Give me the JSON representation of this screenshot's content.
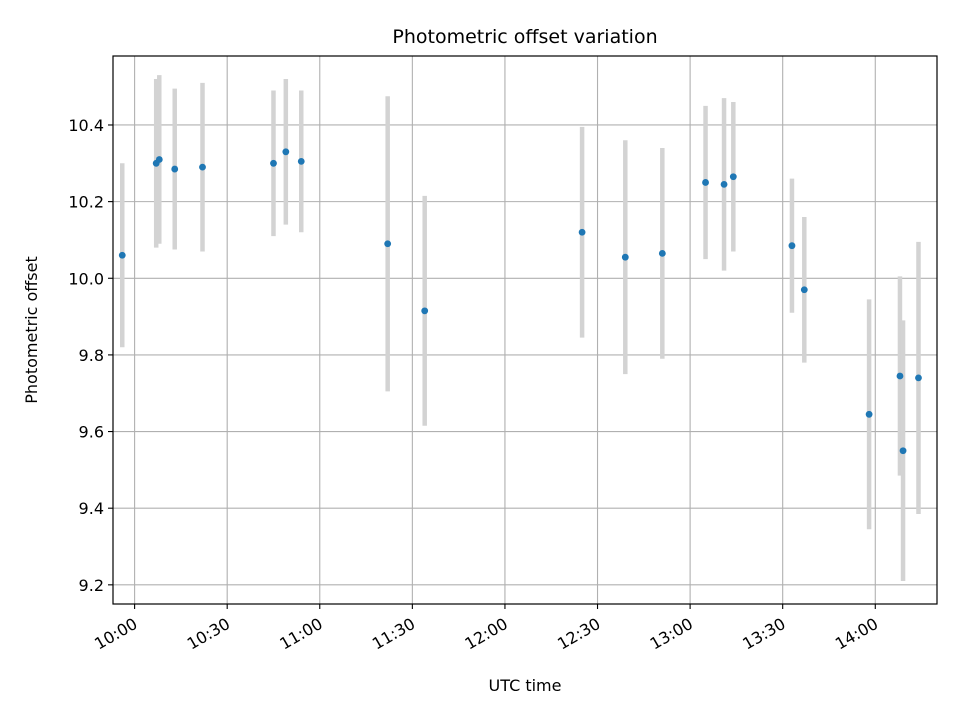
{
  "chart_data": {
    "type": "scatter",
    "title": "Photometric offset variation",
    "xlabel": "UTC time",
    "ylabel": "Photometric offset",
    "x_ticks": [
      "10:00",
      "10:30",
      "11:00",
      "11:30",
      "12:00",
      "12:30",
      "13:00",
      "13:30",
      "14:00"
    ],
    "y_ticks": [
      9.2,
      9.4,
      9.6,
      9.8,
      10.0,
      10.2,
      10.4
    ],
    "xlim": [
      "09:53",
      "14:20"
    ],
    "ylim": [
      9.15,
      10.58
    ],
    "grid": true,
    "point_color": "#1f77b4",
    "errorbar_color": "#d3d3d3",
    "series": [
      {
        "points": [
          {
            "x": "09:56",
            "y": 10.06,
            "yerr": 0.24
          },
          {
            "x": "10:07",
            "y": 10.3,
            "yerr": 0.22
          },
          {
            "x": "10:08",
            "y": 10.31,
            "yerr": 0.22
          },
          {
            "x": "10:13",
            "y": 10.285,
            "yerr": 0.21
          },
          {
            "x": "10:22",
            "y": 10.29,
            "yerr": 0.22
          },
          {
            "x": "10:45",
            "y": 10.3,
            "yerr": 0.19
          },
          {
            "x": "10:49",
            "y": 10.33,
            "yerr": 0.19
          },
          {
            "x": "10:54",
            "y": 10.305,
            "yerr": 0.185
          },
          {
            "x": "11:22",
            "y": 10.09,
            "yerr": 0.385
          },
          {
            "x": "11:34",
            "y": 9.915,
            "yerr": 0.3
          },
          {
            "x": "12:25",
            "y": 10.12,
            "yerr": 0.275
          },
          {
            "x": "12:39",
            "y": 10.055,
            "yerr": 0.305
          },
          {
            "x": "12:51",
            "y": 10.065,
            "yerr": 0.275
          },
          {
            "x": "13:05",
            "y": 10.25,
            "yerr": 0.2
          },
          {
            "x": "13:11",
            "y": 10.245,
            "yerr": 0.225
          },
          {
            "x": "13:14",
            "y": 10.265,
            "yerr": 0.195
          },
          {
            "x": "13:33",
            "y": 10.085,
            "yerr": 0.175
          },
          {
            "x": "13:37",
            "y": 9.97,
            "yerr": 0.19
          },
          {
            "x": "13:58",
            "y": 9.645,
            "yerr": 0.3
          },
          {
            "x": "14:08",
            "y": 9.745,
            "yerr": 0.26
          },
          {
            "x": "14:09",
            "y": 9.55,
            "yerr": 0.34
          },
          {
            "x": "14:14",
            "y": 9.74,
            "yerr": 0.355
          }
        ]
      }
    ]
  }
}
